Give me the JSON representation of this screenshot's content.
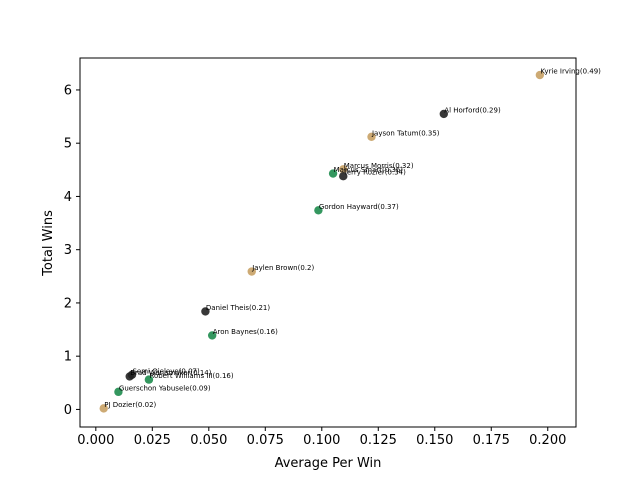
{
  "chart_data": {
    "type": "scatter",
    "xlabel": "Average Per Win",
    "ylabel": "Total Wins",
    "xlim": [
      -0.007,
      0.2125
    ],
    "ylim": [
      -0.33,
      6.6
    ],
    "x_ticks": [
      0.0,
      0.025,
      0.05,
      0.075,
      0.1,
      0.125,
      0.15,
      0.175,
      0.2
    ],
    "x_tick_labels": [
      "0.000",
      "0.025",
      "0.050",
      "0.075",
      "0.100",
      "0.125",
      "0.150",
      "0.175",
      "0.200"
    ],
    "y_ticks": [
      0,
      1,
      2,
      3,
      4,
      5,
      6
    ],
    "y_tick_labels": [
      "0",
      "1",
      "2",
      "3",
      "4",
      "5",
      "6"
    ],
    "grid": false,
    "colors": {
      "tan": "#c8a165",
      "green": "#1e8c4e",
      "black": "#222222"
    },
    "points": [
      {
        "label": "Kyrie Irving(0.49)",
        "x": 0.1965,
        "y": 6.28,
        "color": "tan"
      },
      {
        "label": "Al Horford(0.29)",
        "x": 0.154,
        "y": 5.55,
        "color": "black"
      },
      {
        "label": "Jayson Tatum(0.35)",
        "x": 0.122,
        "y": 5.12,
        "color": "tan"
      },
      {
        "label": "Marcus Morris(0.32)",
        "x": 0.1095,
        "y": 4.51,
        "color": "tan"
      },
      {
        "label": "Marcus Smart(0.36)",
        "x": 0.105,
        "y": 4.43,
        "color": "green"
      },
      {
        "label": "Terry Rozier(0.34)",
        "x": 0.1095,
        "y": 4.38,
        "color": "black"
      },
      {
        "label": "Gordon Hayward(0.37)",
        "x": 0.0985,
        "y": 3.74,
        "color": "green"
      },
      {
        "label": "Jaylen Brown(0.2)",
        "x": 0.069,
        "y": 2.59,
        "color": "tan"
      },
      {
        "label": "Daniel Theis(0.21)",
        "x": 0.0485,
        "y": 1.84,
        "color": "black"
      },
      {
        "label": "Aron Baynes(0.16)",
        "x": 0.0515,
        "y": 1.39,
        "color": "green"
      },
      {
        "label": "Semi Ojeleye(0.07)",
        "x": 0.016,
        "y": 0.65,
        "color": "black"
      },
      {
        "label": "Brad Wanamaker(0.14)",
        "x": 0.015,
        "y": 0.62,
        "color": "black"
      },
      {
        "label": "Robert Williams III(0.16)",
        "x": 0.0235,
        "y": 0.56,
        "color": "green"
      },
      {
        "label": "Guerschon Yabusele(0.09)",
        "x": 0.01,
        "y": 0.33,
        "color": "green"
      },
      {
        "label": "PJ Dozier(0.02)",
        "x": 0.0035,
        "y": 0.02,
        "color": "tan"
      }
    ]
  }
}
